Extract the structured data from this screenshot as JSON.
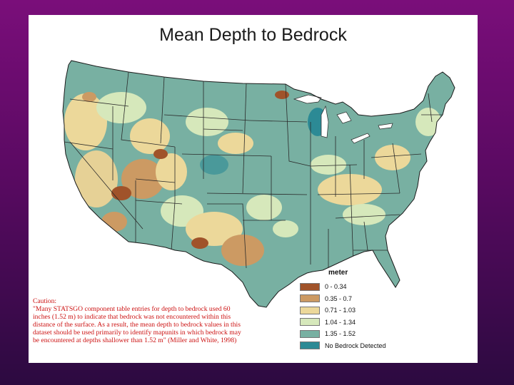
{
  "title": "Mean Depth to Bedrock",
  "legend": {
    "title": "meter",
    "items": [
      {
        "label": "0 - 0.34",
        "color": "#a0532a"
      },
      {
        "label": "0.35 - 0.7",
        "color": "#cc9a63"
      },
      {
        "label": "0.71 - 1.03",
        "color": "#ecd89a"
      },
      {
        "label": "1.04 - 1.34",
        "color": "#d6e8bb"
      },
      {
        "label": "1.35 - 1.52",
        "color": "#78b0a2"
      },
      {
        "label": "No Bedrock Detected",
        "color": "#2c8a95"
      }
    ]
  },
  "caution": {
    "header": "Caution:",
    "text": "\"Many STATSGO component table entries for depth to bedrock used 60 inches (1.52 m) to indicate that bedrock was not encountered within this distance of the surface.  As a result, the mean depth to bedrock values in this dataset should be used primarily to identify mapunits in which bedrock may be encountered at depths shallower than 1.52 m\" (Miller and White, 1998)"
  },
  "colors": {
    "background_top": "#7a0e7a",
    "background_bottom": "#2c0a40",
    "caution_text": "#cc1111",
    "base_fill": "#78b0a2",
    "state_border": "#2a2a2a"
  }
}
